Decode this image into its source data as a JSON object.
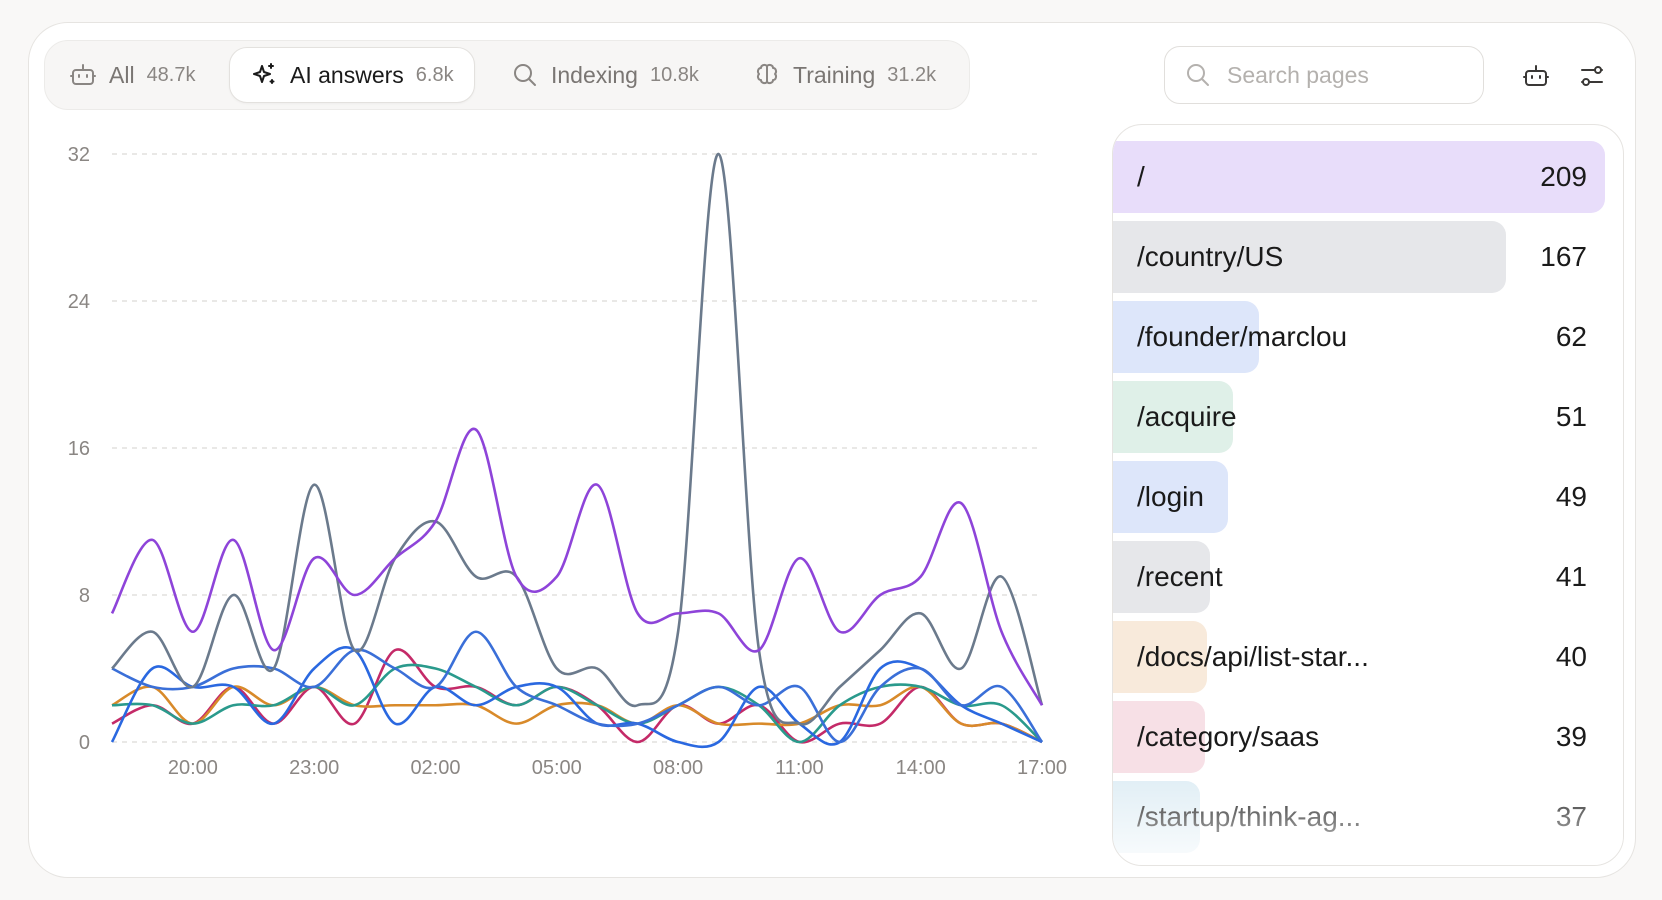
{
  "tabs": [
    {
      "label": "All",
      "count": "48.7k",
      "icon": "robot-icon",
      "active": false
    },
    {
      "label": "AI answers",
      "count": "6.8k",
      "icon": "sparkles-icon",
      "active": true
    },
    {
      "label": "Indexing",
      "count": "10.8k",
      "icon": "search-icon",
      "active": false
    },
    {
      "label": "Training",
      "count": "31.2k",
      "icon": "brain-icon",
      "active": false
    }
  ],
  "search": {
    "placeholder": "Search pages"
  },
  "toolbar": {
    "bot_icon": "robot-icon",
    "filter_icon": "sliders-icon"
  },
  "chart_data": {
    "type": "line",
    "ylim": [
      0,
      32
    ],
    "yticks": [
      0,
      8,
      16,
      24,
      32
    ],
    "xticks": [
      "20:00",
      "23:00",
      "02:00",
      "05:00",
      "08:00",
      "11:00",
      "14:00",
      "17:00"
    ],
    "grid": true,
    "x": [
      "18:00",
      "19:00",
      "20:00",
      "21:00",
      "22:00",
      "23:00",
      "00:00",
      "01:00",
      "02:00",
      "03:00",
      "04:00",
      "05:00",
      "06:00",
      "07:00",
      "08:00",
      "09:00",
      "10:00",
      "11:00",
      "12:00",
      "13:00",
      "14:00",
      "15:00",
      "16:00",
      "17:00"
    ],
    "series": [
      {
        "color": "#8e44d9",
        "values": [
          7,
          11,
          6,
          11,
          5,
          10,
          8,
          10,
          12,
          17,
          9,
          9,
          14,
          7,
          7,
          7,
          5,
          10,
          6,
          8,
          9,
          13,
          6,
          2
        ]
      },
      {
        "color": "#6b7a8c",
        "values": [
          4,
          6,
          3,
          8,
          4,
          14,
          5,
          10,
          12,
          9,
          9,
          4,
          4,
          2,
          6,
          32,
          5,
          1,
          3,
          5,
          7,
          4,
          9,
          2
        ]
      },
      {
        "color": "#3a6fd8",
        "values": [
          4,
          3,
          3,
          4,
          4,
          3,
          5,
          4,
          3,
          6,
          3,
          2,
          1,
          1,
          2,
          3,
          2,
          3,
          0,
          3,
          4,
          2,
          3,
          0
        ]
      },
      {
        "color": "#2a68e0",
        "values": [
          0,
          4,
          3,
          3,
          1,
          4,
          5,
          1,
          3,
          2,
          3,
          3,
          1,
          1,
          0,
          0,
          3,
          1,
          0,
          4,
          4,
          2,
          1,
          0
        ]
      },
      {
        "color": "#2a9a8c",
        "values": [
          2,
          2,
          1,
          2,
          2,
          3,
          2,
          4,
          4,
          3,
          2,
          3,
          2,
          1,
          2,
          3,
          2,
          0,
          2,
          3,
          3,
          2,
          2,
          0
        ]
      },
      {
        "color": "#d88a2a",
        "values": [
          2,
          3,
          1,
          3,
          2,
          3,
          2,
          2,
          2,
          2,
          1,
          2,
          2,
          1,
          2,
          1,
          1,
          1,
          2,
          2,
          3,
          1,
          1,
          0
        ]
      },
      {
        "color": "#c42a68",
        "values": [
          1,
          2,
          1,
          3,
          1,
          3,
          1,
          5,
          3,
          3,
          2,
          3,
          2,
          0,
          2,
          1,
          2,
          0,
          1,
          1,
          3,
          1,
          1,
          0
        ]
      }
    ]
  },
  "pages": [
    {
      "path": "/",
      "count": "209",
      "value": 209,
      "color": "#e8ddfa"
    },
    {
      "path": "/country/US",
      "count": "167",
      "value": 167,
      "color": "#e6e7ea"
    },
    {
      "path": "/founder/marclou",
      "count": "62",
      "value": 62,
      "color": "#dde6fa"
    },
    {
      "path": "/acquire",
      "count": "51",
      "value": 51,
      "color": "#dff0e8"
    },
    {
      "path": "/login",
      "count": "49",
      "value": 49,
      "color": "#dde6fa"
    },
    {
      "path": "/recent",
      "count": "41",
      "value": 41,
      "color": "#e6e7ea"
    },
    {
      "path": "/docs/api/list-star...",
      "count": "40",
      "value": 40,
      "color": "#f8eadb"
    },
    {
      "path": "/category/saas",
      "count": "39",
      "value": 39,
      "color": "#f7e0e6"
    },
    {
      "path": "/startup/think-ag...",
      "count": "37",
      "value": 37,
      "color": "#e0eef5"
    }
  ]
}
